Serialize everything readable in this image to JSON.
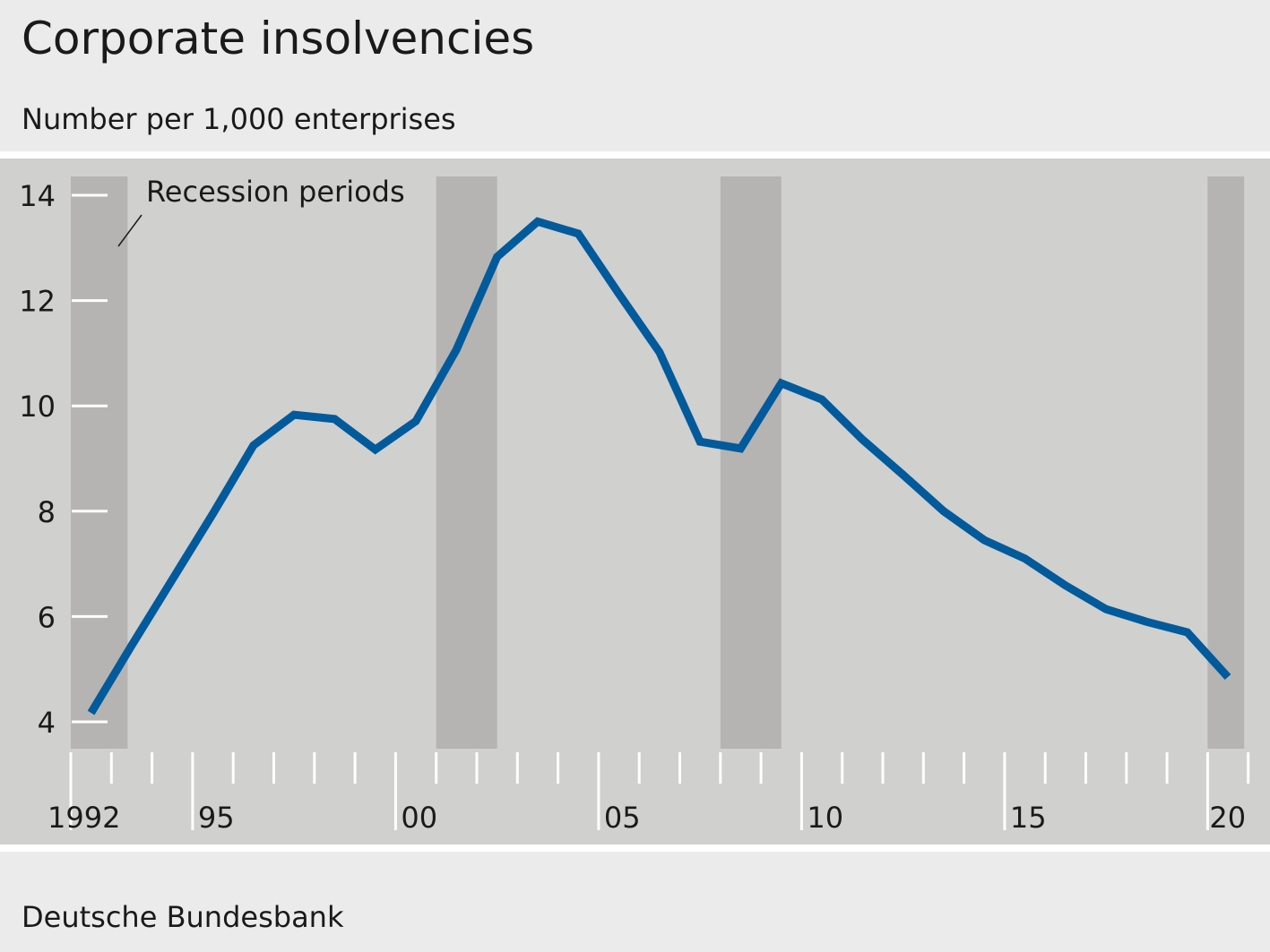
{
  "header": {
    "title": "Corporate insolvencies",
    "subtitle": "Number per 1,000 enterprises"
  },
  "footer": {
    "source": "Deutsche Bundesbank"
  },
  "colors": {
    "line": "#005a9b",
    "recession": "#b5b4b2",
    "panel": "#d0d0cf",
    "background": "#ebebeb"
  },
  "chart_data": {
    "type": "line",
    "title": "Corporate insolvencies",
    "ylabel": "Number per 1,000 enterprises",
    "xlabel": "",
    "ylim": [
      3.5,
      14.3
    ],
    "xlim": [
      1992,
      2021
    ],
    "yticks": [
      4,
      6,
      8,
      10,
      12,
      14
    ],
    "xtick_labels": [
      {
        "year": 1992,
        "label": "1992"
      },
      {
        "year": 1995,
        "label": "95"
      },
      {
        "year": 2000,
        "label": "00"
      },
      {
        "year": 2005,
        "label": "05"
      },
      {
        "year": 2010,
        "label": "10"
      },
      {
        "year": 2015,
        "label": "15"
      },
      {
        "year": 2020,
        "label": "20"
      }
    ],
    "grid": false,
    "annotation": "Recession periods",
    "recessions": [
      [
        1992.0,
        1993.4
      ],
      [
        2001.0,
        2002.5
      ],
      [
        2008.0,
        2009.5
      ],
      [
        2020.0,
        2020.9
      ]
    ],
    "series": [
      {
        "name": "Corporate insolvencies",
        "x": [
          1992,
          1993,
          1994,
          1995,
          1996,
          1997,
          1998,
          1999,
          2000,
          2001,
          2002,
          2003,
          2004,
          2005,
          2006,
          2007,
          2008,
          2009,
          2010,
          2011,
          2012,
          2013,
          2014,
          2015,
          2016,
          2017,
          2018,
          2019,
          2020
        ],
        "values": [
          4.17,
          5.45,
          6.7,
          7.95,
          9.25,
          9.83,
          9.75,
          9.17,
          9.71,
          11.07,
          12.83,
          13.5,
          13.27,
          12.13,
          11.02,
          9.32,
          9.19,
          10.43,
          10.12,
          9.36,
          8.69,
          8.0,
          7.45,
          7.1,
          6.59,
          6.14,
          5.9,
          5.7,
          4.85
        ]
      }
    ]
  }
}
